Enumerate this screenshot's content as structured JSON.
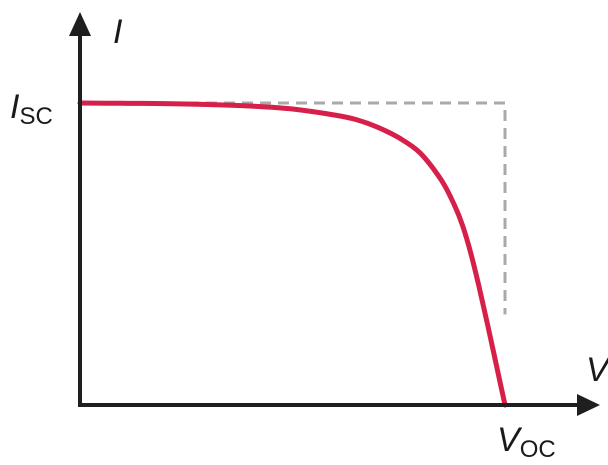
{
  "chart_data": {
    "type": "line",
    "title": "",
    "xlabel": "V",
    "ylabel": "I",
    "y_marker_label": {
      "symbol": "I",
      "subscript": "SC"
    },
    "x_marker_label": {
      "symbol": "V",
      "subscript": "OC"
    },
    "xlim": [
      0,
      1.2
    ],
    "ylim": [
      0,
      1.45
    ],
    "grid": false,
    "series": [
      {
        "style": "solid",
        "color": "#d6204a",
        "x": [
          0,
          0.1,
          0.2,
          0.3,
          0.4,
          0.5,
          0.6,
          0.65,
          0.7,
          0.75,
          0.8,
          0.85,
          0.88,
          0.9,
          0.92,
          0.94,
          0.96,
          0.98,
          1.0
        ],
        "y": [
          1.0,
          0.999,
          0.998,
          0.995,
          0.99,
          0.98,
          0.96,
          0.945,
          0.92,
          0.885,
          0.835,
          0.745,
          0.665,
          0.595,
          0.5,
          0.385,
          0.26,
          0.13,
          0.0
        ]
      },
      {
        "style": "dashed",
        "color": "#a9a9a9",
        "x": [
          0,
          1.0,
          1.0
        ],
        "y": [
          1.0,
          1.0,
          0.3
        ]
      }
    ]
  }
}
